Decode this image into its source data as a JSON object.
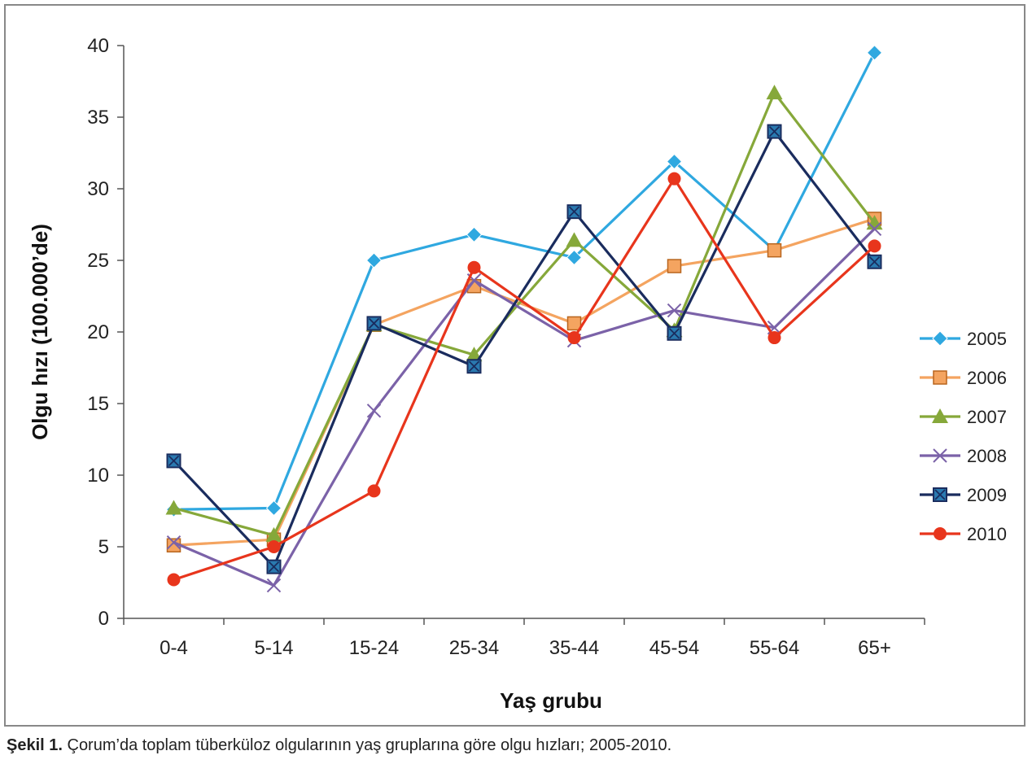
{
  "chart_data": {
    "type": "line",
    "title": "",
    "xlabel": "Yaş grubu",
    "ylabel": "Olgu hızı (100.000’de)",
    "ylim": [
      0,
      40
    ],
    "yticks": [
      "0",
      "5",
      "10",
      "15",
      "20",
      "25",
      "30",
      "35",
      "40"
    ],
    "categories": [
      "0-4",
      "5-14",
      "15-24",
      "25-34",
      "35-44",
      "45-54",
      "55-64",
      "65+"
    ],
    "legend_position": "right",
    "series": [
      {
        "name": "2005",
        "color": "#2fa8e0",
        "marker": "diamond",
        "values": [
          7.6,
          7.7,
          25.0,
          26.8,
          25.2,
          31.9,
          25.7,
          39.5
        ]
      },
      {
        "name": "2006",
        "color": "#f4a460",
        "marker": "square",
        "values": [
          5.1,
          5.5,
          20.5,
          23.2,
          20.6,
          24.6,
          25.7,
          27.9
        ]
      },
      {
        "name": "2007",
        "color": "#86a83a",
        "marker": "triangle",
        "values": [
          7.7,
          5.8,
          20.5,
          18.4,
          26.4,
          20.1,
          36.7,
          27.6
        ]
      },
      {
        "name": "2008",
        "color": "#7b62a8",
        "marker": "x",
        "values": [
          5.3,
          2.3,
          14.5,
          23.6,
          19.4,
          21.5,
          20.3,
          27.2
        ]
      },
      {
        "name": "2009",
        "color": "#1a2c5e",
        "marker": "square-x",
        "values": [
          11.0,
          3.6,
          20.6,
          17.6,
          28.4,
          19.9,
          34.0,
          24.9
        ]
      },
      {
        "name": "2010",
        "color": "#e8351c",
        "marker": "circle",
        "values": [
          2.7,
          5.0,
          8.9,
          24.5,
          19.6,
          30.7,
          19.6,
          26.0
        ]
      }
    ]
  },
  "caption": {
    "label": "Şekil 1.",
    "text": " Çorum’da toplam tüberküloz olgularının yaş gruplarına göre olgu hızları; 2005-2010."
  }
}
